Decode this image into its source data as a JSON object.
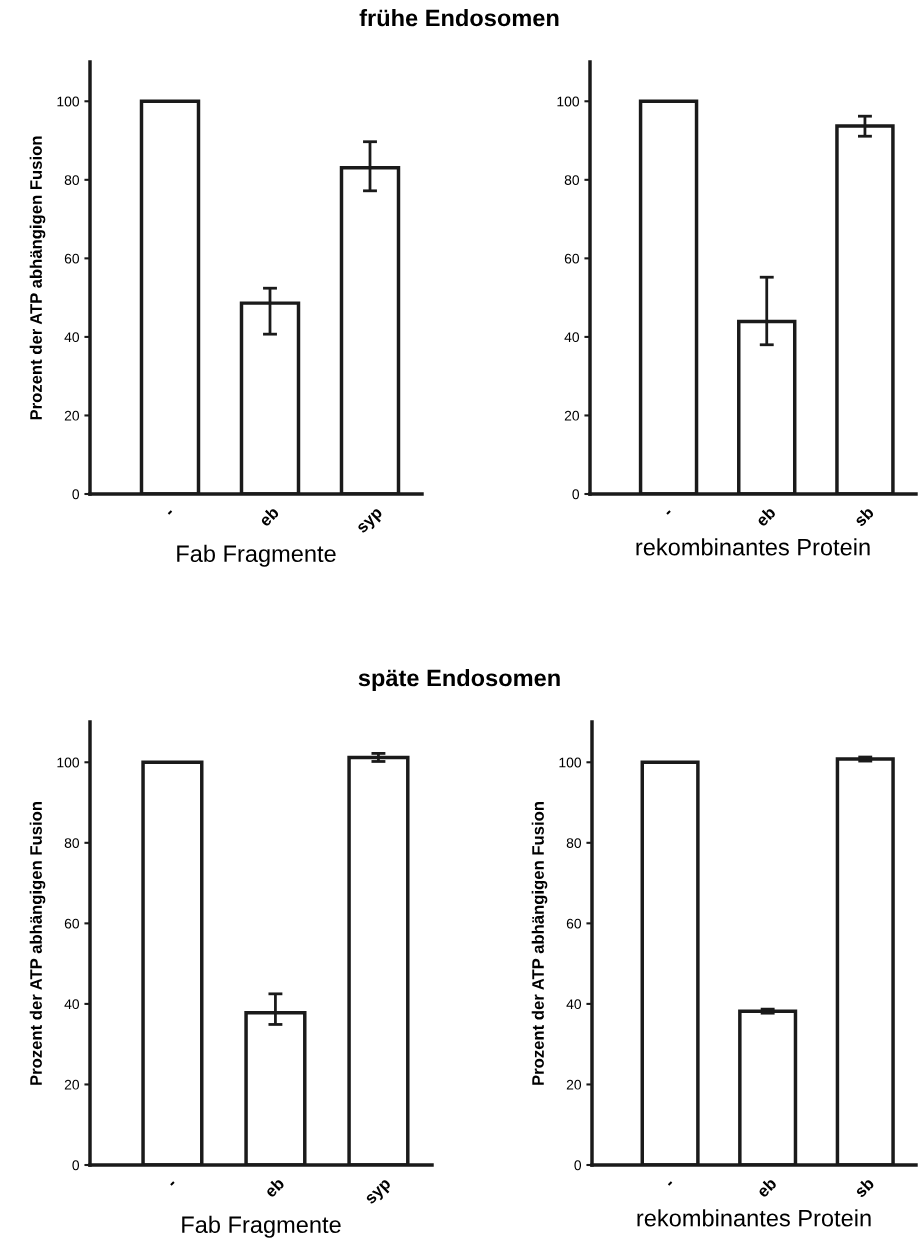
{
  "chart_data": [
    {
      "type": "bar",
      "title": "frühe Endosomen",
      "xlabel": "Fab Fragmente",
      "ylabel": "Prozent der ATP abhängigen Fusion",
      "categories": [
        "-",
        "eb",
        "syp"
      ],
      "values": [
        100,
        48.6,
        83.1
      ],
      "errors": [
        null,
        [
          40.7,
          52.4
        ],
        [
          77.2,
          89.7
        ]
      ],
      "color": "#ffffff",
      "ylim": [
        0,
        110
      ],
      "yticks": [
        0,
        20,
        40,
        60,
        80,
        100
      ],
      "grid": false
    },
    {
      "type": "bar",
      "xlabel": "rekombinantes Protein",
      "categories": [
        "-",
        "eb",
        "sb"
      ],
      "values": [
        100,
        43.9,
        93.7
      ],
      "errors": [
        null,
        [
          38.0,
          55.2
        ],
        [
          91.1,
          96.2
        ]
      ],
      "color": "#ffffff",
      "ylim": [
        0,
        110
      ],
      "yticks": [
        0,
        20,
        40,
        60,
        80,
        100
      ],
      "grid": false
    },
    {
      "type": "bar",
      "title": "späte Endosomen",
      "xlabel": "Fab Fragmente",
      "ylabel": "Prozent der ATP abhängigen Fusion",
      "categories": [
        "-",
        "eb",
        "syp"
      ],
      "values": [
        100,
        37.8,
        101.2
      ],
      "errors": [
        null,
        [
          34.9,
          42.5
        ],
        [
          100.2,
          102.2
        ]
      ],
      "color": "#ffffff",
      "ylim": [
        0,
        110
      ],
      "yticks": [
        0,
        20,
        40,
        60,
        80,
        100
      ],
      "grid": false
    },
    {
      "type": "bar",
      "xlabel": "rekombinantes Protein",
      "ylabel": "Prozent der ATP abhängigen Fusion",
      "categories": [
        "-",
        "eb",
        "sb"
      ],
      "values": [
        100,
        38.2,
        100.8
      ],
      "errors": [
        null,
        [
          37.7,
          38.7
        ],
        [
          100.3,
          101.3
        ]
      ],
      "color": "#ffffff",
      "ylim": [
        0,
        110
      ],
      "yticks": [
        0,
        20,
        40,
        60,
        80,
        100
      ],
      "grid": false
    }
  ]
}
